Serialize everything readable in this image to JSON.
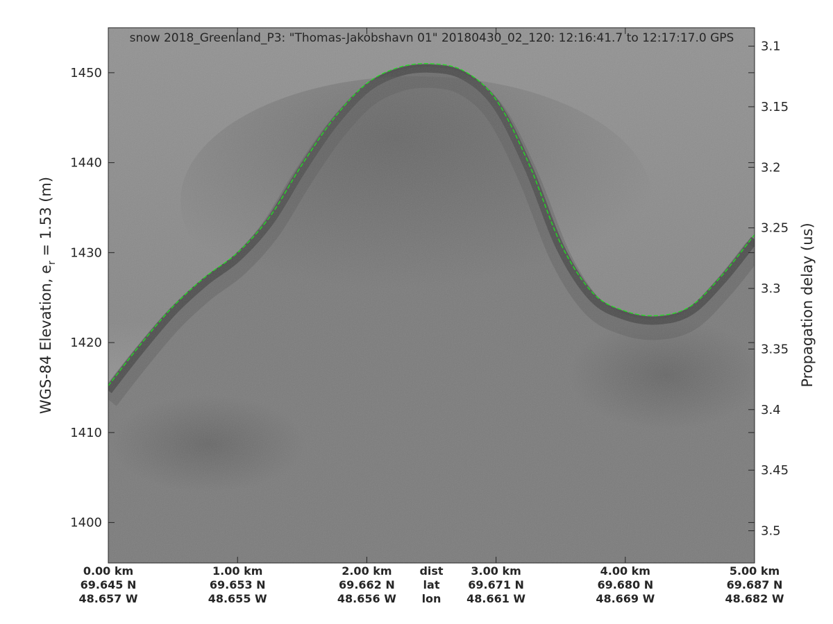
{
  "chart_data": {
    "type": "heatmap",
    "description_kind": "radar echogram (grayscale) with surface-layer trace",
    "title": "snow 2018_Greenland_P3: \"Thomas-Jakobshavn 01\"  20180430_02_120: 12:16:41.7 to 12:17:17.0 GPS",
    "ylabel": "WGS-84 Elevation, e_r = 1.53 (m)",
    "ylabel_main": "WGS-84 Elevation, e",
    "ylabel_sub": "r",
    "ylabel_tail": " = 1.53 (m)",
    "ylabel_right": "Propagation delay (us)",
    "ylim": [
      1395.5,
      1455
    ],
    "yticks": [
      1400,
      1410,
      1420,
      1430,
      1440,
      1450
    ],
    "ytick_labels": [
      "1400",
      "1410",
      "1420",
      "1430",
      "1440",
      "1450"
    ],
    "yticks_right": [
      3.1,
      3.15,
      3.2,
      3.25,
      3.3,
      3.35,
      3.4,
      3.45,
      3.5
    ],
    "ytick_right_labels": [
      "3.1",
      "3.15",
      "3.2",
      "3.25",
      "3.3",
      "3.35",
      "3.4",
      "3.45",
      "3.5"
    ],
    "right_axis_range": [
      3.0848,
      3.5266
    ],
    "xlim": [
      0,
      5
    ],
    "x_axis_rows": {
      "row_names": [
        "dist",
        "lat",
        "lon"
      ],
      "ticks": [
        0,
        1,
        2,
        3,
        4,
        5
      ],
      "dist": [
        "0.00 km",
        "1.00 km",
        "2.00 km",
        "3.00 km",
        "4.00 km",
        "5.00 km"
      ],
      "lat": [
        "69.645 N",
        "69.653 N",
        "69.662 N",
        "69.671 N",
        "69.680 N",
        "69.687 N"
      ],
      "lon": [
        "48.657 W",
        "48.655 W",
        "48.656 W",
        "48.661 W",
        "48.669 W",
        "48.682 W"
      ]
    },
    "series": [
      {
        "color": "#22dd22",
        "style": "dashed",
        "x": [
          0,
          0.25,
          0.5,
          0.75,
          1.0,
          1.25,
          1.5,
          1.75,
          2.0,
          2.25,
          2.5,
          2.75,
          3.0,
          3.25,
          3.5,
          3.75,
          4.0,
          4.25,
          4.5,
          4.75,
          5.0
        ],
        "y": [
          1415.2,
          1419.8,
          1424.0,
          1427.3,
          1430.0,
          1434.0,
          1439.8,
          1445.0,
          1448.8,
          1450.6,
          1451.0,
          1450.2,
          1447.0,
          1440.0,
          1431.0,
          1425.5,
          1423.5,
          1423.0,
          1424.0,
          1427.5,
          1432.0
        ]
      }
    ],
    "grid": false,
    "colormap": "gray"
  }
}
